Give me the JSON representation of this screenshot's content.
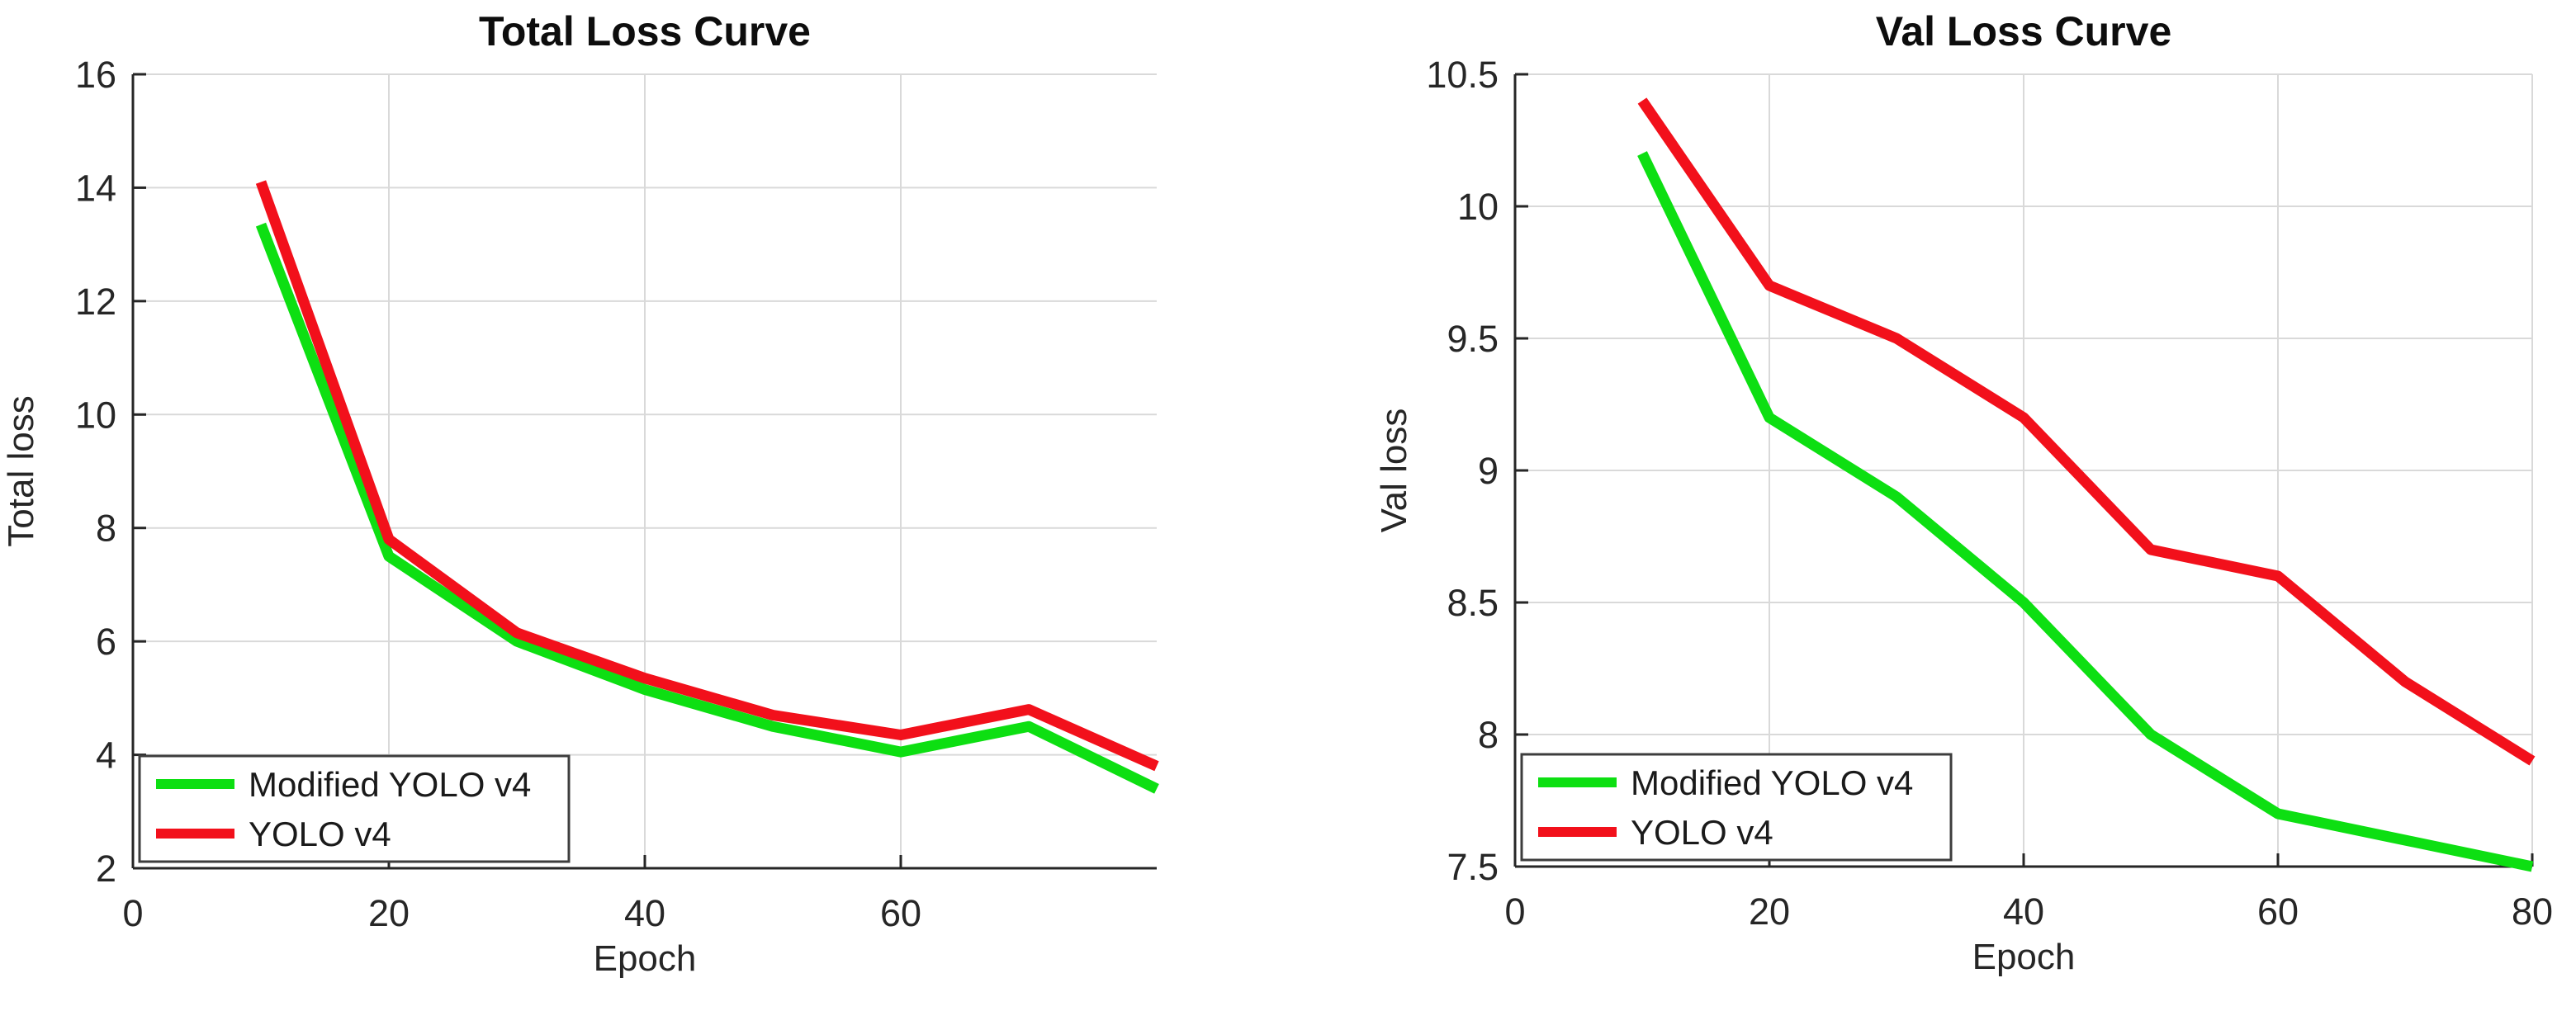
{
  "page": {
    "background": "#ffffff",
    "text_color": "#262626",
    "grid_color": "#d9d9d9",
    "axis_color": "#262626"
  },
  "chart_data": [
    {
      "type": "line",
      "title": "Total Loss Curve",
      "xlabel": "Epoch",
      "ylabel": "Total loss",
      "x": [
        10,
        20,
        30,
        40,
        50,
        60,
        70,
        80
      ],
      "series": [
        {
          "name": "Modified YOLO v4",
          "color": "#0ddf12",
          "values": [
            13.35,
            7.5,
            6.0,
            5.15,
            4.5,
            4.05,
            4.5,
            3.4
          ]
        },
        {
          "name": "YOLO v4",
          "color": "#f2101b",
          "values": [
            14.1,
            7.8,
            6.15,
            5.35,
            4.7,
            4.35,
            4.8,
            3.8
          ]
        }
      ],
      "xlim": [
        0,
        80
      ],
      "ylim": [
        2,
        16
      ],
      "xticks": [
        0,
        20,
        40,
        60
      ],
      "xtick_labels": [
        "0",
        "20",
        "40",
        "60"
      ],
      "yticks": [
        2,
        4,
        6,
        8,
        10,
        12,
        14,
        16
      ],
      "ytick_labels": [
        "2",
        "4",
        "6",
        "8",
        "10",
        "12",
        "14",
        "16"
      ],
      "grid": true,
      "legend_position": "bottom-left",
      "legend_entries": [
        "Modified YOLO v4",
        "YOLO v4"
      ]
    },
    {
      "type": "line",
      "title": "Val Loss Curve",
      "xlabel": "Epoch",
      "ylabel": "Val loss",
      "x": [
        10,
        20,
        30,
        40,
        50,
        60,
        70,
        80
      ],
      "series": [
        {
          "name": "Modified YOLO v4",
          "color": "#0ddf12",
          "values": [
            10.2,
            9.2,
            8.9,
            8.5,
            8.0,
            7.7,
            7.6,
            7.5
          ]
        },
        {
          "name": "YOLO v4",
          "color": "#f2101b",
          "values": [
            10.4,
            9.7,
            9.5,
            9.2,
            8.7,
            8.6,
            8.2,
            7.9
          ]
        }
      ],
      "xlim": [
        0,
        80
      ],
      "ylim": [
        7.5,
        10.5
      ],
      "xticks": [
        0,
        20,
        40,
        60,
        80
      ],
      "xtick_labels": [
        "0",
        "20",
        "40",
        "60",
        "80"
      ],
      "yticks": [
        7.5,
        8.0,
        8.5,
        9.0,
        9.5,
        10.0,
        10.5
      ],
      "ytick_labels": [
        "7.5",
        "8",
        "8.5",
        "9",
        "9.5",
        "10",
        "10.5"
      ],
      "grid": true,
      "legend_position": "bottom-left",
      "legend_entries": [
        "Modified YOLO v4",
        "YOLO v4"
      ]
    }
  ]
}
